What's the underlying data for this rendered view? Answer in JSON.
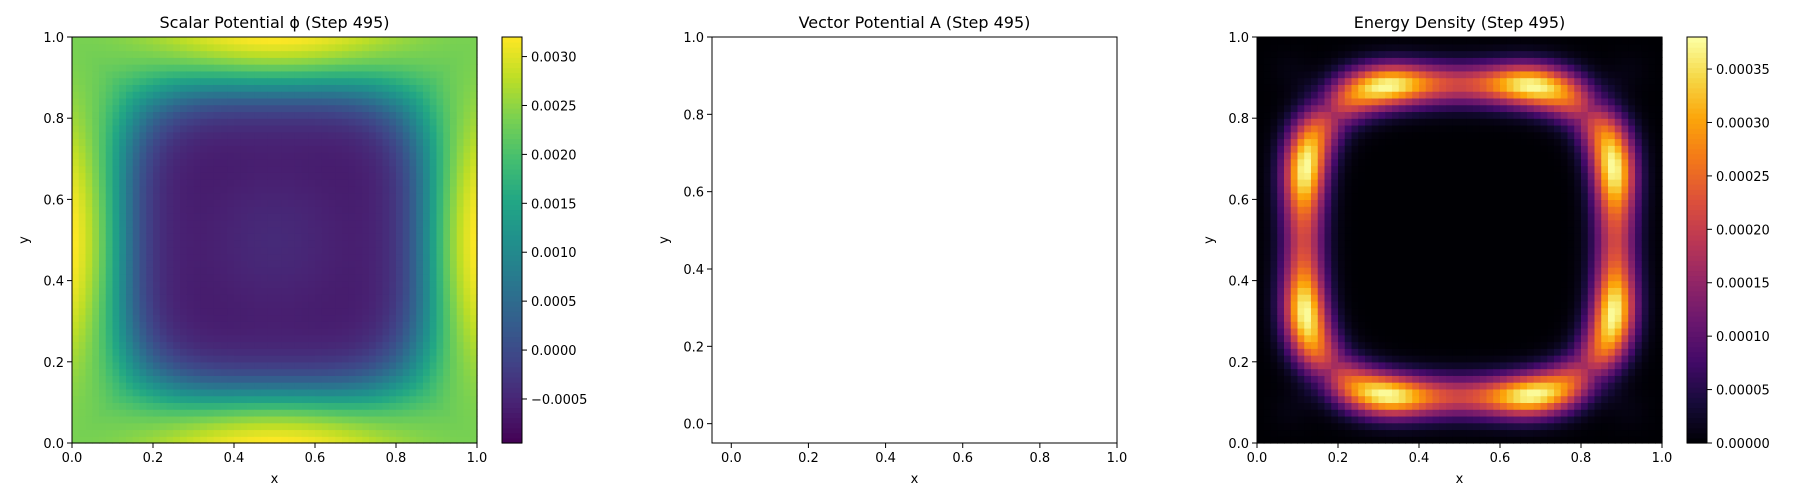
{
  "chart_data": [
    {
      "type": "heatmap",
      "title": "Scalar Potential ϕ (Step 495)",
      "xlabel": "x",
      "ylabel": "y",
      "xlim": [
        0.0,
        1.0
      ],
      "ylim": [
        0.0,
        1.0
      ],
      "xticks": [
        "0.0",
        "0.2",
        "0.4",
        "0.6",
        "0.8",
        "1.0"
      ],
      "yticks": [
        "0.0",
        "0.2",
        "0.4",
        "0.6",
        "0.8",
        "1.0"
      ],
      "colormap": "viridis",
      "value_range": [
        -0.00095,
        0.0032
      ],
      "colorbar_ticks": [
        "−0.0005",
        "0.0000",
        "0.0005",
        "0.0010",
        "0.0015",
        "0.0020",
        "0.0025",
        "0.0030"
      ],
      "colorbar_tick_values": [
        -0.0005,
        0.0,
        0.0005,
        0.001,
        0.0015,
        0.002,
        0.0025,
        0.003
      ],
      "grid": false
    },
    {
      "type": "line",
      "title": "Vector Potential A (Step 495)",
      "xlabel": "x",
      "ylabel": "y",
      "xlim": [
        -0.05,
        1.0
      ],
      "ylim": [
        -0.05,
        1.0
      ],
      "xticks": [
        "0.0",
        "0.2",
        "0.4",
        "0.6",
        "0.8",
        "1.0"
      ],
      "yticks": [
        "0.0",
        "0.2",
        "0.4",
        "0.6",
        "0.8",
        "1.0"
      ],
      "series": [],
      "grid": false
    },
    {
      "type": "heatmap",
      "title": "Energy Density (Step 495)",
      "xlabel": "x",
      "ylabel": "y",
      "xlim": [
        0.0,
        1.0
      ],
      "ylim": [
        0.0,
        1.0
      ],
      "xticks": [
        "0.0",
        "0.2",
        "0.4",
        "0.6",
        "0.8",
        "1.0"
      ],
      "yticks": [
        "0.0",
        "0.2",
        "0.4",
        "0.6",
        "0.8",
        "1.0"
      ],
      "colormap": "inferno",
      "value_range": [
        0.0,
        0.00038
      ],
      "colorbar_ticks": [
        "0.00000",
        "0.00005",
        "0.00010",
        "0.00015",
        "0.00020",
        "0.00025",
        "0.00030",
        "0.00035"
      ],
      "colorbar_tick_values": [
        0.0,
        5e-05,
        0.0001,
        0.00015,
        0.0002,
        0.00025,
        0.0003,
        0.00035
      ],
      "grid": false
    }
  ]
}
